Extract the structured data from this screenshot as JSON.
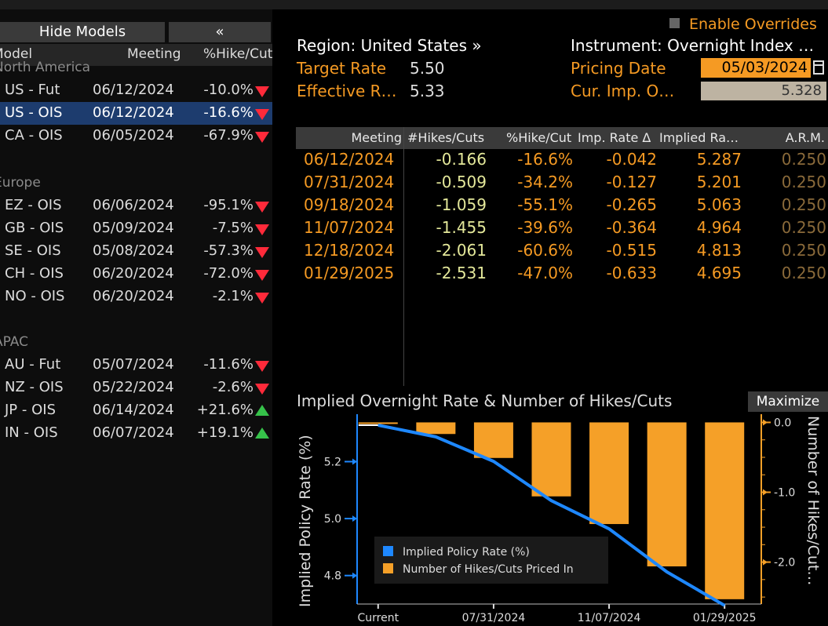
{
  "left_panel": {
    "hide_label": "Hide Models",
    "collapse_label": "«",
    "columns": {
      "model": "Model",
      "meeting": "Meeting",
      "pct": "%Hike/Cut"
    },
    "regions": [
      {
        "name": "North America"
      },
      {
        "name": "Europe"
      },
      {
        "name": "APAC"
      }
    ],
    "rows": [
      {
        "model": "US - Fut",
        "meeting": "06/12/2024",
        "pct": "-10.0%",
        "dir": "down"
      },
      {
        "model": "US - OIS",
        "meeting": "06/12/2024",
        "pct": "-16.6%",
        "dir": "down",
        "selected": true
      },
      {
        "model": "CA - OIS",
        "meeting": "06/05/2024",
        "pct": "-67.9%",
        "dir": "down"
      },
      {
        "model": "EZ - OIS",
        "meeting": "06/06/2024",
        "pct": "-95.1%",
        "dir": "down"
      },
      {
        "model": "GB - OIS",
        "meeting": "05/09/2024",
        "pct": "-7.5%",
        "dir": "down"
      },
      {
        "model": "SE - OIS",
        "meeting": "05/08/2024",
        "pct": "-57.3%",
        "dir": "down"
      },
      {
        "model": "CH - OIS",
        "meeting": "06/20/2024",
        "pct": "-72.0%",
        "dir": "down"
      },
      {
        "model": "NO - OIS",
        "meeting": "06/20/2024",
        "pct": "-2.1%",
        "dir": "down"
      },
      {
        "model": "AU - Fut",
        "meeting": "05/07/2024",
        "pct": "-11.6%",
        "dir": "down"
      },
      {
        "model": "NZ - OIS",
        "meeting": "05/22/2024",
        "pct": "-2.6%",
        "dir": "down"
      },
      {
        "model": "JP - OIS",
        "meeting": "06/14/2024",
        "pct": "+21.6%",
        "dir": "up"
      },
      {
        "model": "IN - OIS",
        "meeting": "06/07/2024",
        "pct": "+19.1%",
        "dir": "up"
      }
    ]
  },
  "header": {
    "enable_overrides": "Enable Overrides",
    "region": "Region: United States »",
    "instrument": "Instrument: Overnight Index …",
    "target_rate_label": "Target Rate",
    "target_rate": "5.50",
    "effective_label": "Effective R…",
    "effective_rate": "5.33",
    "pricing_date_label": "Pricing Date",
    "pricing_date": "05/03/2024",
    "cur_imp_label": "Cur. Imp. O…",
    "cur_imp": "5.328"
  },
  "table": {
    "headers": {
      "meeting": "Meeting",
      "hikes": "#Hikes/Cuts",
      "pct": "%Hike/Cut",
      "imp_delta": "Imp. Rate Δ",
      "implied": "Implied Ra…",
      "arm": "A.R.M."
    },
    "rows": [
      {
        "meeting": "06/12/2024",
        "hikes": "-0.166",
        "pct": "-16.6%",
        "imp_delta": "-0.042",
        "implied": "5.287",
        "arm": "0.250"
      },
      {
        "meeting": "07/31/2024",
        "hikes": "-0.509",
        "pct": "-34.2%",
        "imp_delta": "-0.127",
        "implied": "5.201",
        "arm": "0.250"
      },
      {
        "meeting": "09/18/2024",
        "hikes": "-1.059",
        "pct": "-55.1%",
        "imp_delta": "-0.265",
        "implied": "5.063",
        "arm": "0.250"
      },
      {
        "meeting": "11/07/2024",
        "hikes": "-1.455",
        "pct": "-39.6%",
        "imp_delta": "-0.364",
        "implied": "4.964",
        "arm": "0.250"
      },
      {
        "meeting": "12/18/2024",
        "hikes": "-2.061",
        "pct": "-60.6%",
        "imp_delta": "-0.515",
        "implied": "4.813",
        "arm": "0.250"
      },
      {
        "meeting": "01/29/2025",
        "hikes": "-2.531",
        "pct": "-47.0%",
        "imp_delta": "-0.633",
        "implied": "4.695",
        "arm": "0.250"
      }
    ]
  },
  "chart": {
    "maximize_label": "Maximize"
  },
  "chart_data": {
    "type": "bar",
    "title": "Implied Overnight Rate & Number of Hikes/Cuts",
    "ylabel": "Implied Policy Rate (%)",
    "y2label": "Number of Hikes/Cut…",
    "x_tick_labels": [
      "Current",
      "07/31/2024",
      "11/07/2024",
      "01/29/2025"
    ],
    "categories": [
      "Current",
      "06/12/2024",
      "07/31/2024",
      "09/18/2024",
      "11/07/2024",
      "12/18/2024",
      "01/29/2025"
    ],
    "y_ticks": [
      "5.2",
      "5.0",
      "4.8"
    ],
    "y2_ticks": [
      "0.0",
      "-1.0",
      "-2.0"
    ],
    "ylim": [
      4.7,
      5.35
    ],
    "y2lim": [
      -2.6,
      0.05
    ],
    "series": [
      {
        "name": "Implied Policy Rate (%)",
        "kind": "line",
        "color": "#1e88ff",
        "values": [
          5.328,
          5.287,
          5.201,
          5.063,
          4.964,
          4.813,
          4.695
        ]
      },
      {
        "name": "Number of Hikes/Cuts Priced In",
        "kind": "bar",
        "color": "#f5a028",
        "values": [
          0,
          -0.166,
          -0.509,
          -1.059,
          -1.455,
          -2.061,
          -2.531
        ]
      }
    ]
  }
}
